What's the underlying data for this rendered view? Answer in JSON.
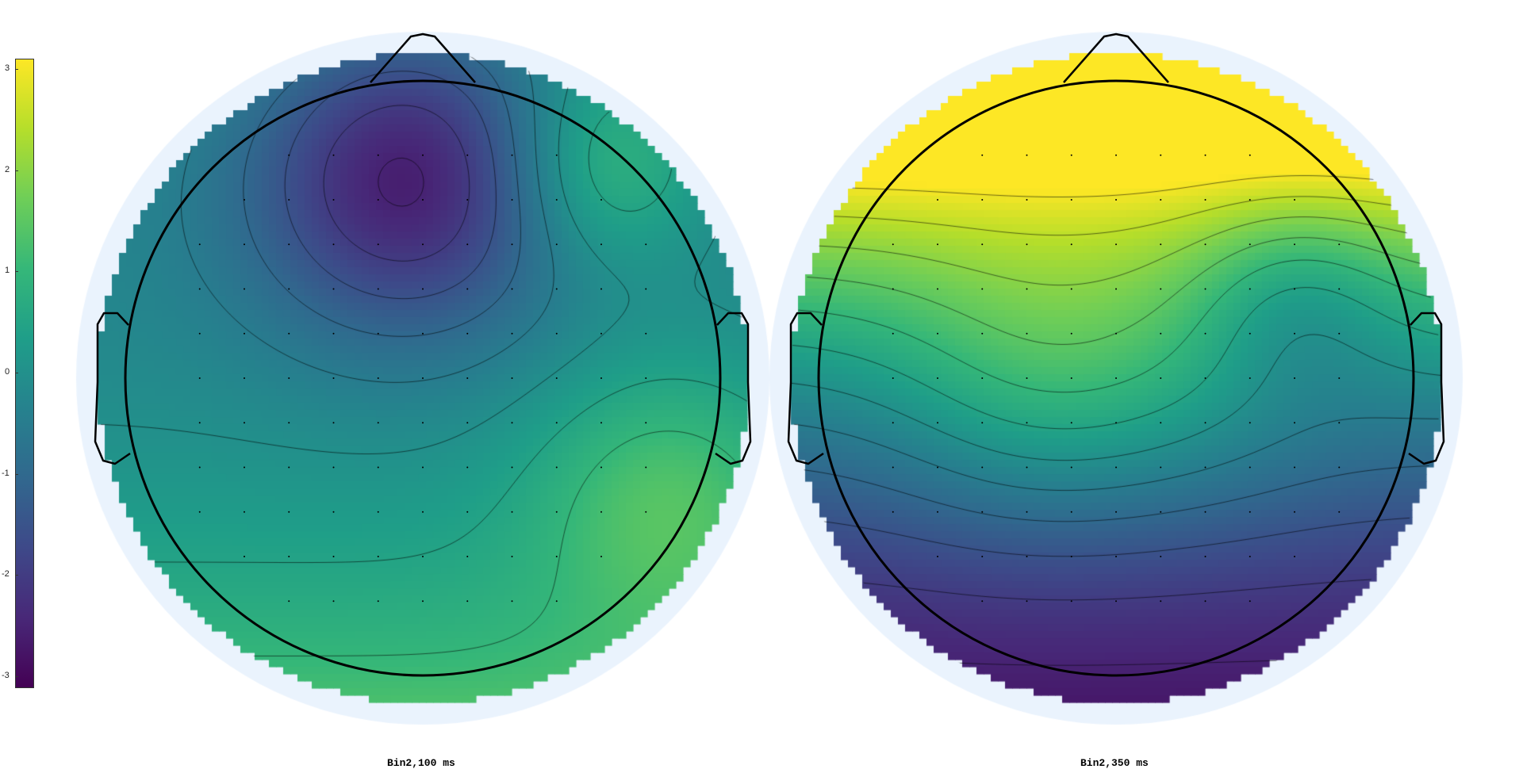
{
  "chart_data": [
    {
      "type": "heatmap",
      "title": "Bin2,100 ms",
      "topology": "scalp",
      "pattern": "negative frontal-left, positive posterior",
      "field": {
        "gradient": [
          0,
          -0.62,
          0.78
        ],
        "bias": -0.1,
        "gaussians": [
          {
            "x": -0.05,
            "y": 0.62,
            "amp": -2.4,
            "sigma": 0.34
          },
          {
            "x": 0.55,
            "y": 0.65,
            "amp": 1.3,
            "sigma": 0.22
          },
          {
            "x": 0.75,
            "y": -0.35,
            "amp": 1.2,
            "sigma": 0.3
          }
        ]
      }
    },
    {
      "type": "heatmap",
      "title": "Bin2,350 ms",
      "topology": "scalp",
      "pattern": "positive frontal, negative posterior",
      "field": {
        "gradient": [
          0,
          4.2,
          1.5
        ],
        "bias": 0.0,
        "gaussians": [
          {
            "x": -0.25,
            "y": -0.05,
            "amp": 1.0,
            "sigma": 0.32
          },
          {
            "x": 0.25,
            "y": -0.05,
            "amp": 0.5,
            "sigma": 0.32
          },
          {
            "x": 0.55,
            "y": 0.25,
            "amp": -1.0,
            "sigma": 0.22
          }
        ]
      }
    }
  ],
  "colorbar": {
    "colormap": "viridis",
    "range": [
      -3.1,
      3.1
    ],
    "ticks": [
      "3",
      "2",
      "1",
      "0",
      "-1",
      "-2",
      "-3"
    ],
    "tick_values": [
      3,
      2,
      1,
      0,
      -1,
      -2,
      -3
    ]
  },
  "colors": {
    "outer_ring": "#eaf3fd",
    "head_outline": "#000000",
    "contour": "#000000"
  }
}
